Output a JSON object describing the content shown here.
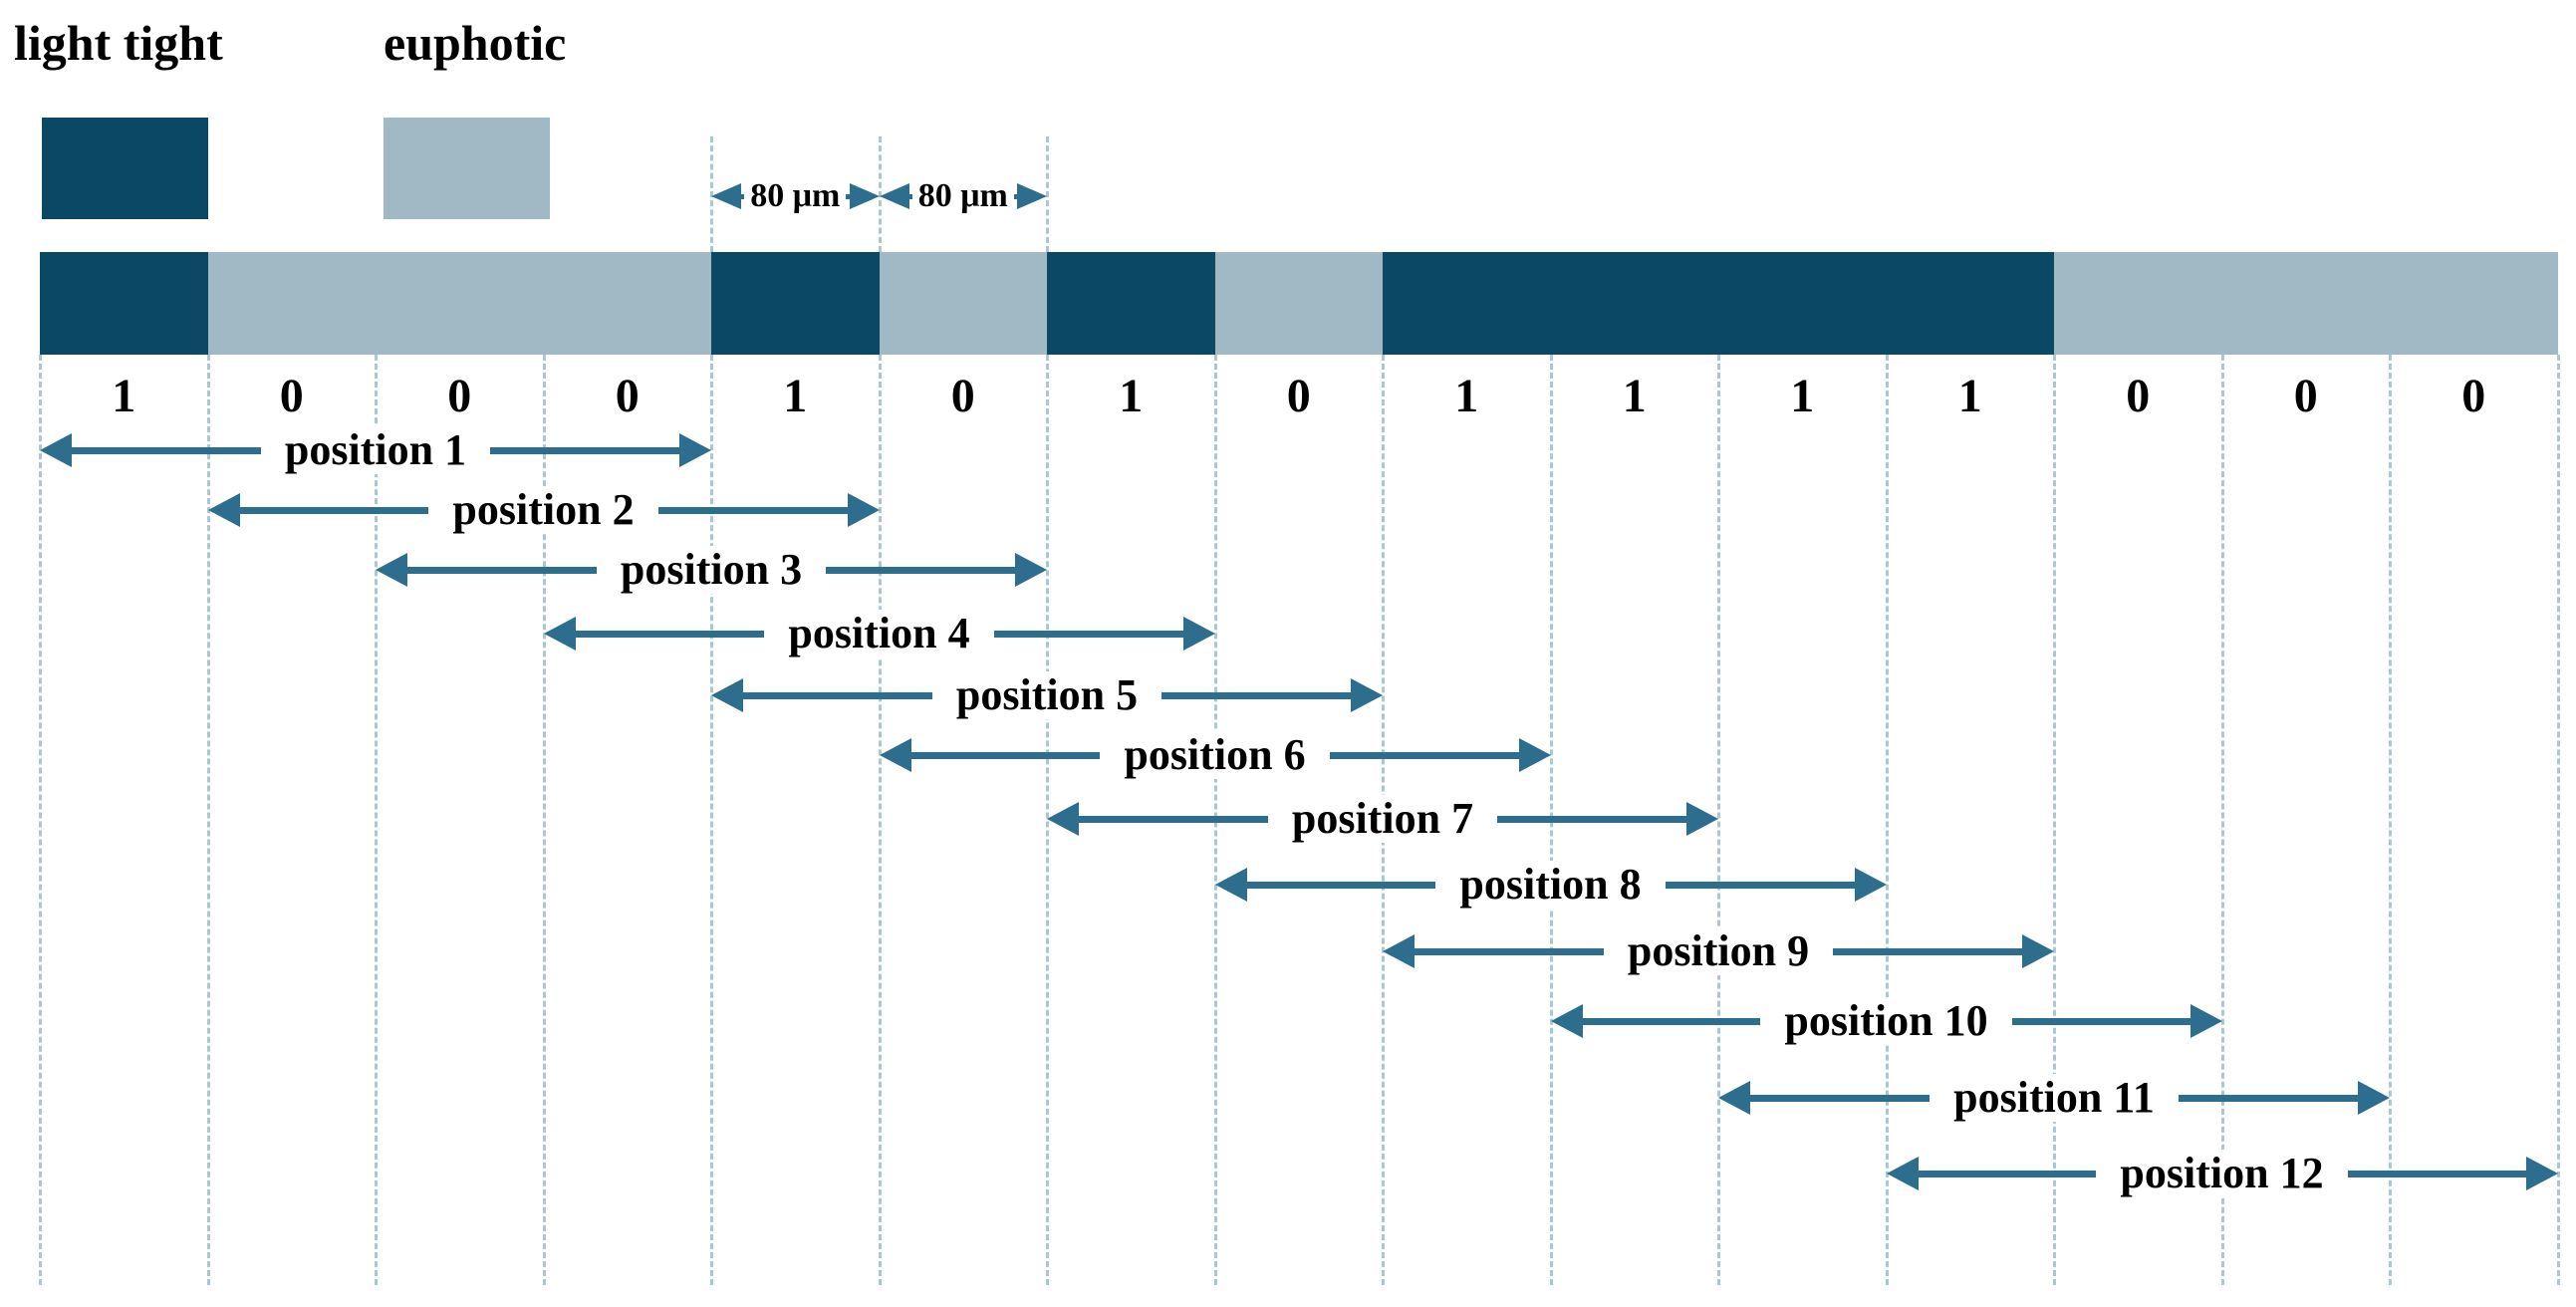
{
  "legend": {
    "items": [
      {
        "id": "light-tight",
        "label": "light tight",
        "color": "#0b4865"
      },
      {
        "id": "euphotic",
        "label": "euphotic",
        "color": "#a0b9c5"
      }
    ]
  },
  "scale": {
    "annotations": [
      "80 μm",
      "80 μm"
    ]
  },
  "encoder": {
    "bits": [
      "1",
      "0",
      "0",
      "0",
      "1",
      "0",
      "1",
      "0",
      "1",
      "1",
      "1",
      "1",
      "0",
      "0",
      "0"
    ]
  },
  "positions": [
    {
      "label": "position 1"
    },
    {
      "label": "position 2"
    },
    {
      "label": "position 3"
    },
    {
      "label": "position 4"
    },
    {
      "label": "position 5"
    },
    {
      "label": "position 6"
    },
    {
      "label": "position 7"
    },
    {
      "label": "position 8"
    },
    {
      "label": "position 9"
    },
    {
      "label": "position 10"
    },
    {
      "label": "position 11"
    },
    {
      "label": "position 12"
    }
  ],
  "colors": {
    "bit_one": "#0b4865",
    "bit_zero": "#a0b9c5",
    "arrow": "#2d6d8e",
    "dashed_line": "#aac8d4",
    "text": "#000000"
  }
}
